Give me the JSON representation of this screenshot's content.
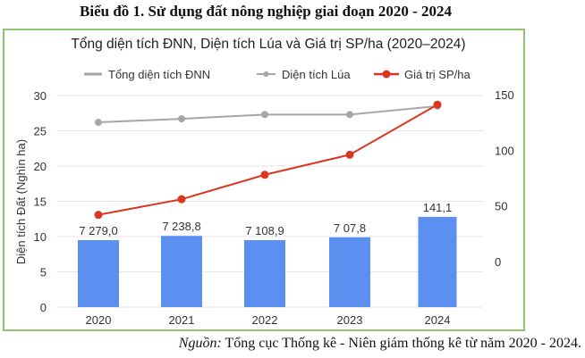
{
  "heading": "Biểu đồ 1. Sử dụng đất nông nghiệp giai đoạn 2020 - 2024",
  "source": {
    "label": "Nguồn:",
    "text": " Tổng cục Thống kê - Niên giám thống kê từ năm 2020 - 2024."
  },
  "colors": {
    "bars": "#5b8ff0",
    "rice": "#a6a6a6",
    "total": "#a6a6a6",
    "value": "#d9371e",
    "frame": "#8cc56f"
  },
  "chart_data": {
    "type": "bar+line",
    "title": "Tổng diện tích ĐNN, Diện tích Lúa và Giá trị SP/ha (2020–2024)",
    "categories": [
      "2020",
      "2021",
      "2022",
      "2023",
      "2024"
    ],
    "ylabel": "Diện tích Đất (Nghìn ha)",
    "ylim": [
      0,
      30
    ],
    "yticks": [
      "0",
      "5",
      "10",
      "15",
      "20",
      "25",
      "30"
    ],
    "y2lim": [
      0,
      150
    ],
    "y2ticks": [
      "0",
      "50",
      "100",
      "150"
    ],
    "grid": true,
    "legend": "top",
    "legend_entries": [
      "Tổng diện tích ĐNN",
      "Diện tích Lúa",
      "Giá trị SP/ha"
    ],
    "series": [
      {
        "name": "Tổng diện tích ĐNN",
        "type": "bar",
        "axis": "left",
        "values": [
          9.5,
          10.1,
          9.5,
          9.9,
          12.8
        ],
        "labels": [
          "7 279,0",
          "7 238,8",
          "7 108,9",
          "7 07,8",
          "141,1"
        ]
      },
      {
        "name": "Diện tích Lúa",
        "type": "line",
        "axis": "left",
        "values": [
          26.2,
          26.7,
          27.3,
          27.3,
          28.5
        ]
      },
      {
        "name": "Giá trị SP/ha",
        "type": "line",
        "axis": "right",
        "values": [
          42,
          56,
          78,
          96,
          141
        ]
      }
    ]
  }
}
